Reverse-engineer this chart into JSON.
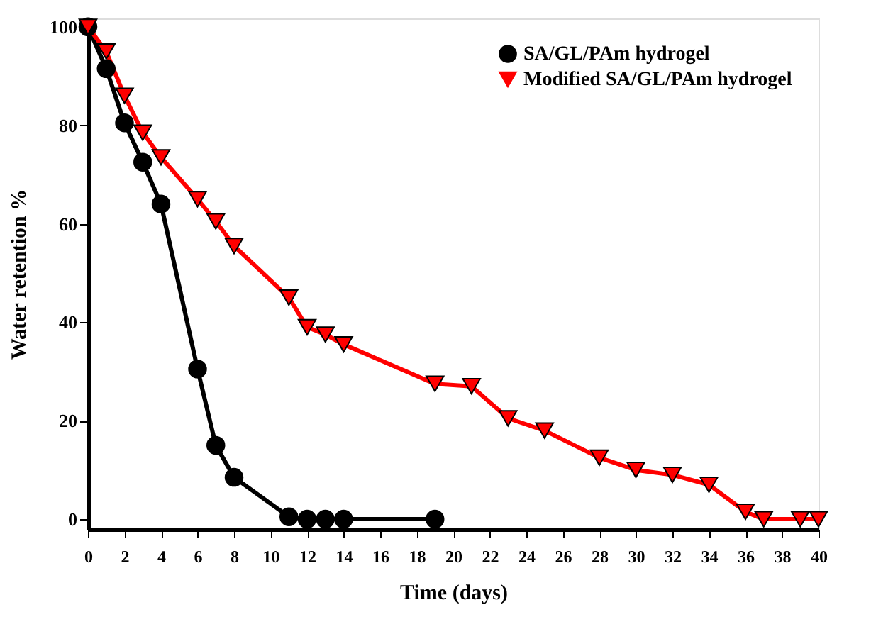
{
  "chart_data": {
    "type": "line",
    "xlabel": "Time (days)",
    "ylabel": "Water retention %",
    "xlim": [
      0,
      40
    ],
    "ylim": [
      -2,
      101.7
    ],
    "xticks": [
      0,
      2,
      4,
      6,
      8,
      10,
      12,
      14,
      16,
      18,
      20,
      22,
      24,
      26,
      28,
      30,
      32,
      34,
      36,
      38,
      40
    ],
    "yticks": [
      0,
      20,
      40,
      60,
      80,
      100
    ],
    "grid": false,
    "legend": "top right",
    "line_style": "solid",
    "series": [
      {
        "name": "SA/GL/PAm hydrogel",
        "color": "#000000",
        "marker": "circle",
        "x": [
          0,
          1,
          2,
          3,
          4,
          6,
          7,
          8,
          11,
          12,
          13,
          14,
          19
        ],
        "values": [
          100,
          91.5,
          80.5,
          72.5,
          64,
          30.5,
          15,
          8.5,
          0.5,
          0,
          0,
          0,
          0
        ]
      },
      {
        "name": "Modified SA/GL/PAm hydrogel",
        "color": "#ff0000",
        "marker": "triangle",
        "x": [
          0,
          1,
          2,
          3,
          4,
          6,
          7,
          8,
          11,
          12,
          13,
          14,
          19,
          21,
          23,
          25,
          28,
          30,
          32,
          34,
          36,
          37,
          39,
          40
        ],
        "values": [
          100,
          95,
          86,
          78.5,
          73.5,
          65,
          60.5,
          55.5,
          45,
          39,
          37.5,
          35.5,
          27.5,
          27,
          20.5,
          18,
          12.5,
          10,
          9,
          7,
          1.5,
          0,
          0,
          0
        ]
      }
    ]
  }
}
